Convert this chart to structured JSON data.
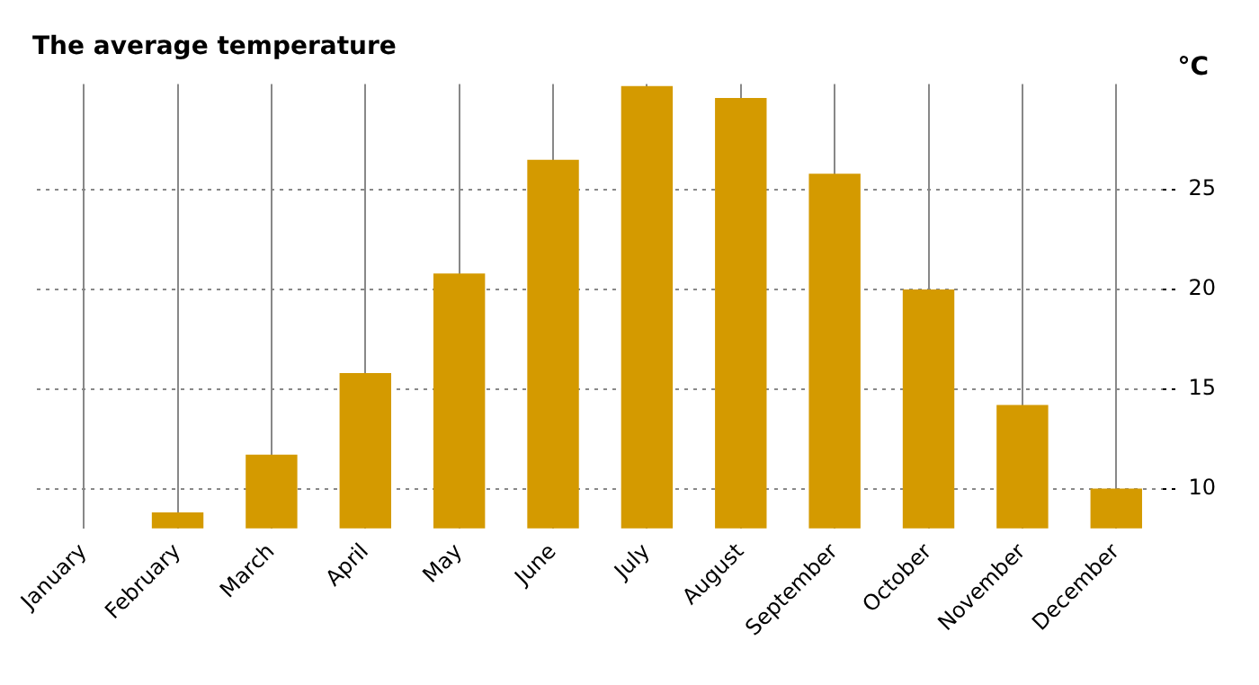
{
  "chart_data": {
    "type": "bar",
    "title": "The average temperature",
    "ylabel": "°C",
    "categories": [
      "January",
      "February",
      "March",
      "April",
      "May",
      "June",
      "July",
      "August",
      "September",
      "October",
      "November",
      "December"
    ],
    "series": [
      {
        "color": "#d49a00",
        "values": [
          null,
          8.8,
          11.7,
          15.8,
          20.8,
          26.5,
          30.2,
          29.6,
          25.8,
          20,
          14.2,
          10
        ]
      }
    ],
    "ylim": [
      8,
      30.3
    ],
    "yticks": [
      10,
      15,
      20,
      25
    ],
    "grid": true,
    "legend": false
  }
}
